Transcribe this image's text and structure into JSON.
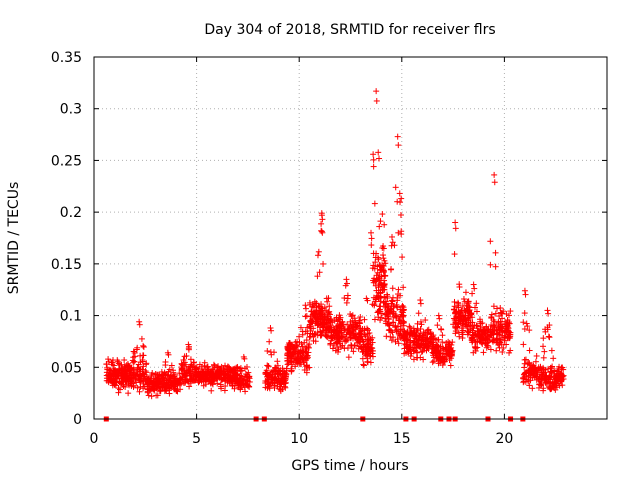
{
  "chart_data": {
    "type": "scatter",
    "title": "Day 304 of 2018, SRMTID for receiver flrs",
    "xlabel": "GPS time / hours",
    "ylabel": "SRMTID / TECUs",
    "xlim": [
      0,
      25
    ],
    "ylim": [
      0,
      0.35
    ],
    "xticks": [
      0,
      5,
      10,
      15,
      20
    ],
    "xtick_labels": [
      "0",
      "5",
      "10",
      "15",
      "20"
    ],
    "yticks": [
      0,
      0.05,
      0.1,
      0.15,
      0.2,
      0.25,
      0.3,
      0.35
    ],
    "ytick_labels": [
      "0",
      "0.05",
      "0.1",
      "0.15",
      "0.2",
      "0.25",
      "0.3",
      "0.35"
    ],
    "grid": true,
    "marker": "plus",
    "color": "#ff0000",
    "zero_points_x": [
      0.6,
      7.9,
      8.3,
      13.1,
      15.2,
      15.6,
      16.9,
      17.3,
      17.6,
      19.2,
      20.3,
      20.9
    ],
    "bands": [
      {
        "x0": 0.6,
        "x1": 2.6,
        "center": 0.042,
        "spread": 0.022,
        "peak": 0.094,
        "peak_x": 2.2,
        "n": 260
      },
      {
        "x0": 2.6,
        "x1": 4.2,
        "center": 0.034,
        "spread": 0.018,
        "peak": 0.064,
        "peak_x": 3.6,
        "n": 200
      },
      {
        "x0": 4.2,
        "x1": 7.0,
        "center": 0.042,
        "spread": 0.018,
        "peak": 0.072,
        "peak_x": 4.6,
        "n": 320
      },
      {
        "x0": 7.0,
        "x1": 7.6,
        "center": 0.036,
        "spread": 0.015,
        "peak": 0.06,
        "peak_x": 7.3,
        "n": 60
      },
      {
        "x0": 8.3,
        "x1": 9.4,
        "center": 0.04,
        "spread": 0.02,
        "peak": 0.088,
        "peak_x": 8.6,
        "n": 120
      },
      {
        "x0": 9.4,
        "x1": 10.5,
        "center": 0.062,
        "spread": 0.025,
        "peak": 0.11,
        "peak_x": 10.3,
        "n": 140
      },
      {
        "x0": 10.5,
        "x1": 11.5,
        "center": 0.095,
        "spread": 0.035,
        "peak": 0.199,
        "peak_x": 11.1,
        "n": 160
      },
      {
        "x0": 11.5,
        "x1": 13.0,
        "center": 0.085,
        "spread": 0.03,
        "peak": 0.135,
        "peak_x": 12.3,
        "n": 200
      },
      {
        "x0": 13.0,
        "x1": 13.6,
        "center": 0.07,
        "spread": 0.035,
        "peak": 0.18,
        "peak_x": 13.5,
        "n": 80
      },
      {
        "x0": 13.6,
        "x1": 14.2,
        "center": 0.13,
        "spread": 0.07,
        "peak": 0.317,
        "peak_x": 13.75,
        "n": 110
      },
      {
        "x0": 14.2,
        "x1": 15.1,
        "center": 0.1,
        "spread": 0.045,
        "peak": 0.273,
        "peak_x": 14.8,
        "n": 130
      },
      {
        "x0": 15.1,
        "x1": 16.5,
        "center": 0.075,
        "spread": 0.025,
        "peak": 0.115,
        "peak_x": 15.9,
        "n": 170
      },
      {
        "x0": 16.5,
        "x1": 17.5,
        "center": 0.065,
        "spread": 0.02,
        "peak": 0.1,
        "peak_x": 16.8,
        "n": 120
      },
      {
        "x0": 17.5,
        "x1": 18.4,
        "center": 0.1,
        "spread": 0.04,
        "peak": 0.19,
        "peak_x": 17.6,
        "n": 120
      },
      {
        "x0": 18.4,
        "x1": 19.3,
        "center": 0.08,
        "spread": 0.025,
        "peak": 0.13,
        "peak_x": 18.5,
        "n": 110
      },
      {
        "x0": 19.3,
        "x1": 20.3,
        "center": 0.085,
        "spread": 0.035,
        "peak": 0.236,
        "peak_x": 19.5,
        "n": 120
      },
      {
        "x0": 20.9,
        "x1": 21.6,
        "center": 0.045,
        "spread": 0.02,
        "peak": 0.124,
        "peak_x": 21.0,
        "n": 80
      },
      {
        "x0": 21.6,
        "x1": 22.9,
        "center": 0.04,
        "spread": 0.018,
        "peak": 0.105,
        "peak_x": 22.1,
        "n": 150
      }
    ]
  }
}
